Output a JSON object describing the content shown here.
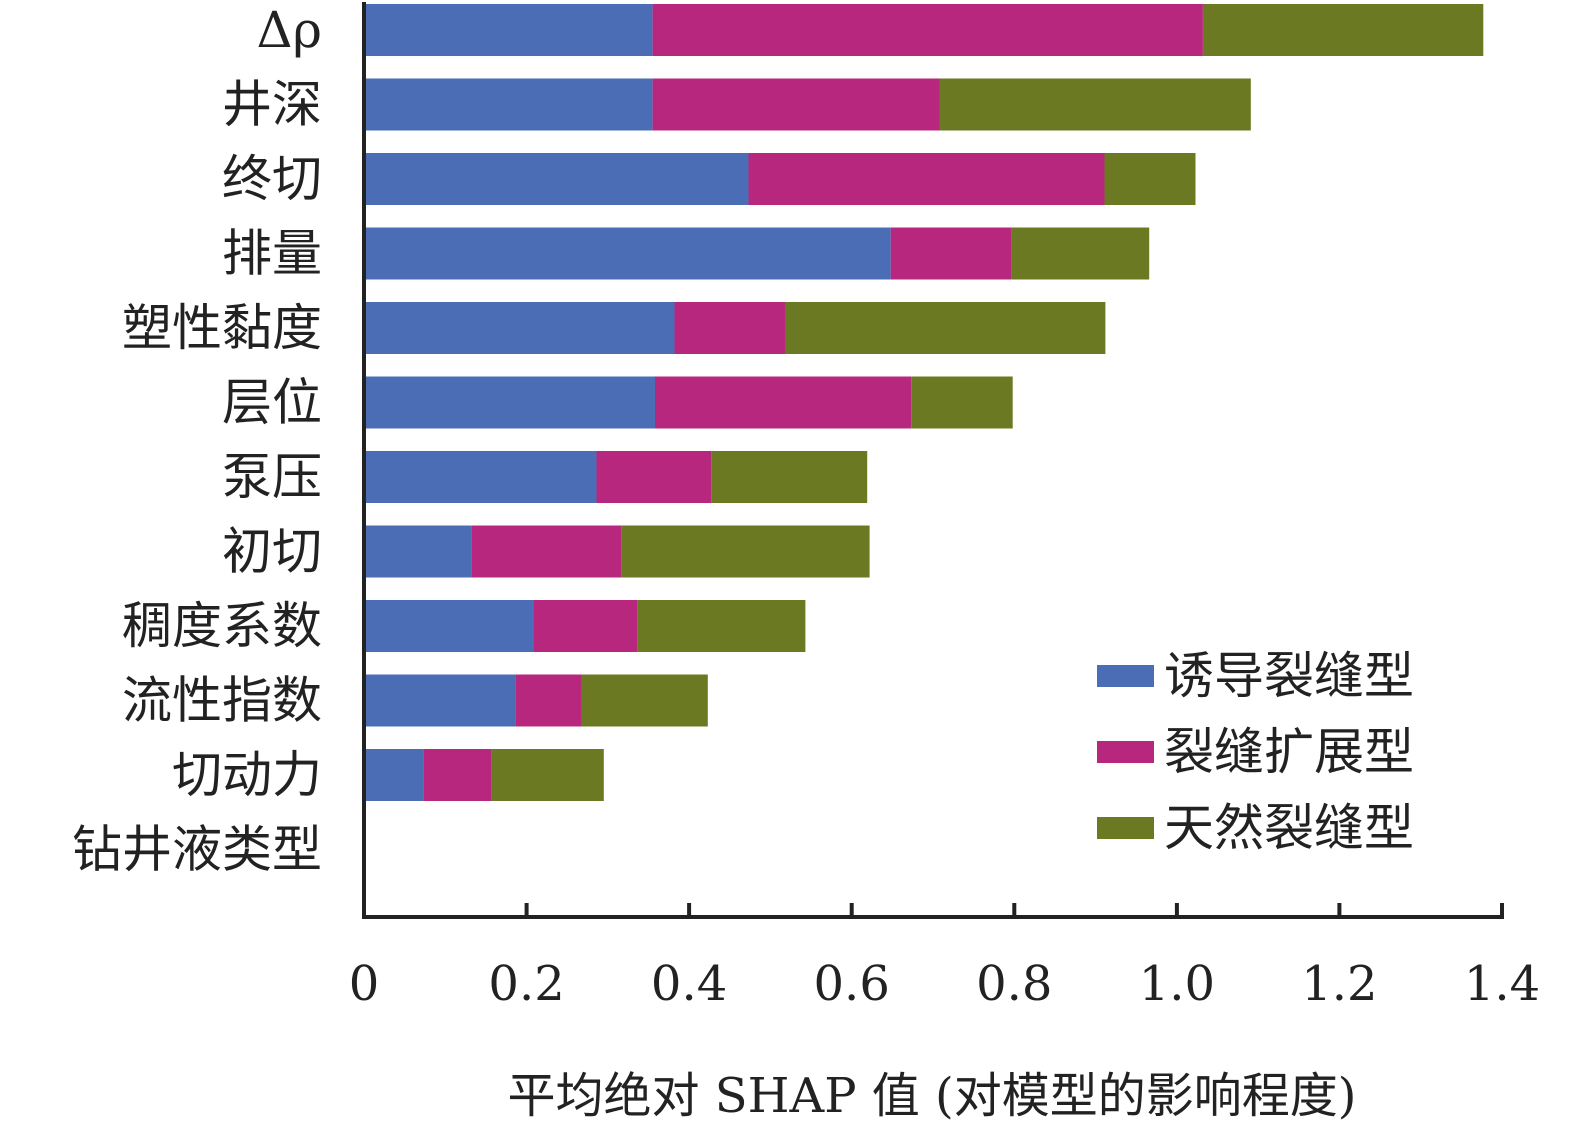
{
  "chart_data": {
    "type": "bar",
    "orientation": "horizontal",
    "stacked": true,
    "categories": [
      "Δρ",
      "井深",
      "终切",
      "排量",
      "塑性黏度",
      "层位",
      "泵压",
      "初切",
      "稠度系数",
      "流性指数",
      "切动力",
      "钻井液类型"
    ],
    "series": [
      {
        "name": "诱导裂缝型",
        "color": "#4a6db5",
        "values": [
          0.355,
          0.355,
          0.473,
          0.648,
          0.382,
          0.358,
          0.286,
          0.132,
          0.208,
          0.186,
          0.073,
          0.0
        ]
      },
      {
        "name": "裂缝扩展型",
        "color": "#b8277e",
        "values": [
          0.677,
          0.353,
          0.438,
          0.149,
          0.137,
          0.315,
          0.141,
          0.185,
          0.128,
          0.082,
          0.084,
          0.0
        ]
      },
      {
        "name": "天然裂缝型",
        "color": "#6b7a22",
        "values": [
          0.345,
          0.383,
          0.112,
          0.169,
          0.393,
          0.125,
          0.192,
          0.305,
          0.207,
          0.155,
          0.138,
          0.0
        ]
      }
    ],
    "xlim": [
      0,
      1.4
    ],
    "xticks": [
      "0",
      "0.2",
      "0.4",
      "0.6",
      "0.8",
      "1.0",
      "1.2",
      "1.4"
    ],
    "xlabel": "平均绝对 SHAP 值 (对模型的影响程度)",
    "ylabel": "",
    "title": "",
    "grid": false,
    "legend": {
      "position": "bottom-right"
    }
  }
}
